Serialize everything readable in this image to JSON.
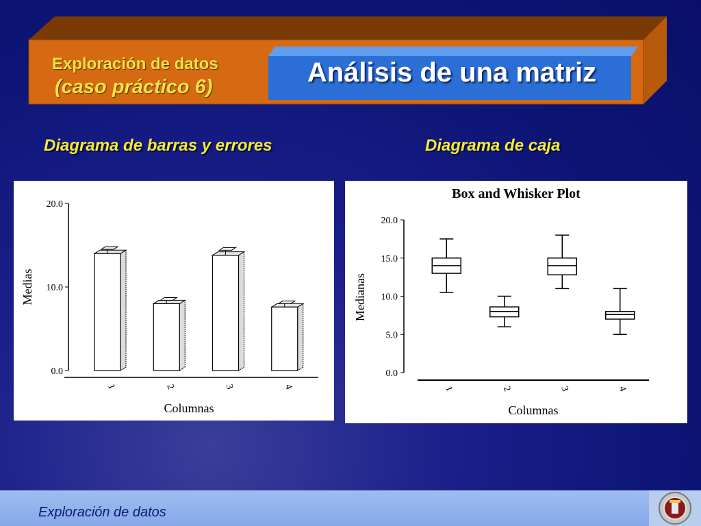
{
  "header": {
    "section": "Exploración de datos",
    "case": "(caso práctico 6)",
    "title": "Análisis de una matriz"
  },
  "left_panel": {
    "subtitle": "Diagrama de barras y errores"
  },
  "right_panel": {
    "subtitle": "Diagrama de caja"
  },
  "footer": {
    "text": "Exploración de datos"
  },
  "colors": {
    "accent_orange": "#d66a12",
    "title_blue": "#2a6ed6",
    "subtitle_yellow": "#f5ea2e"
  },
  "chart_data": [
    {
      "type": "bar",
      "categories": [
        "1",
        "2",
        "3",
        "4"
      ],
      "values": [
        14.0,
        8.0,
        13.8,
        7.6
      ],
      "error": [
        0.5,
        0.4,
        0.6,
        0.4
      ],
      "xlabel": "Columnas",
      "ylabel": "Medias",
      "ylim": [
        0,
        20
      ],
      "yticks": [
        "0.0",
        "10.0",
        "20.0"
      ]
    },
    {
      "type": "box",
      "title": "Box and Whisker Plot",
      "categories": [
        "1",
        "2",
        "3",
        "4"
      ],
      "boxes": [
        {
          "min": 10.5,
          "q1": 13.0,
          "median": 14.0,
          "q3": 15.0,
          "max": 17.5
        },
        {
          "min": 6.0,
          "q1": 7.3,
          "median": 8.0,
          "q3": 8.6,
          "max": 10.0
        },
        {
          "min": 11.0,
          "q1": 12.8,
          "median": 14.0,
          "q3": 15.0,
          "max": 18.0
        },
        {
          "min": 5.0,
          "q1": 7.0,
          "median": 7.6,
          "q3": 8.0,
          "max": 11.0
        }
      ],
      "xlabel": "Columnas",
      "ylabel": "Medianas",
      "ylim": [
        0,
        20
      ],
      "yticks": [
        "0.0",
        "5.0",
        "10.0",
        "15.0",
        "20.0"
      ]
    }
  ]
}
